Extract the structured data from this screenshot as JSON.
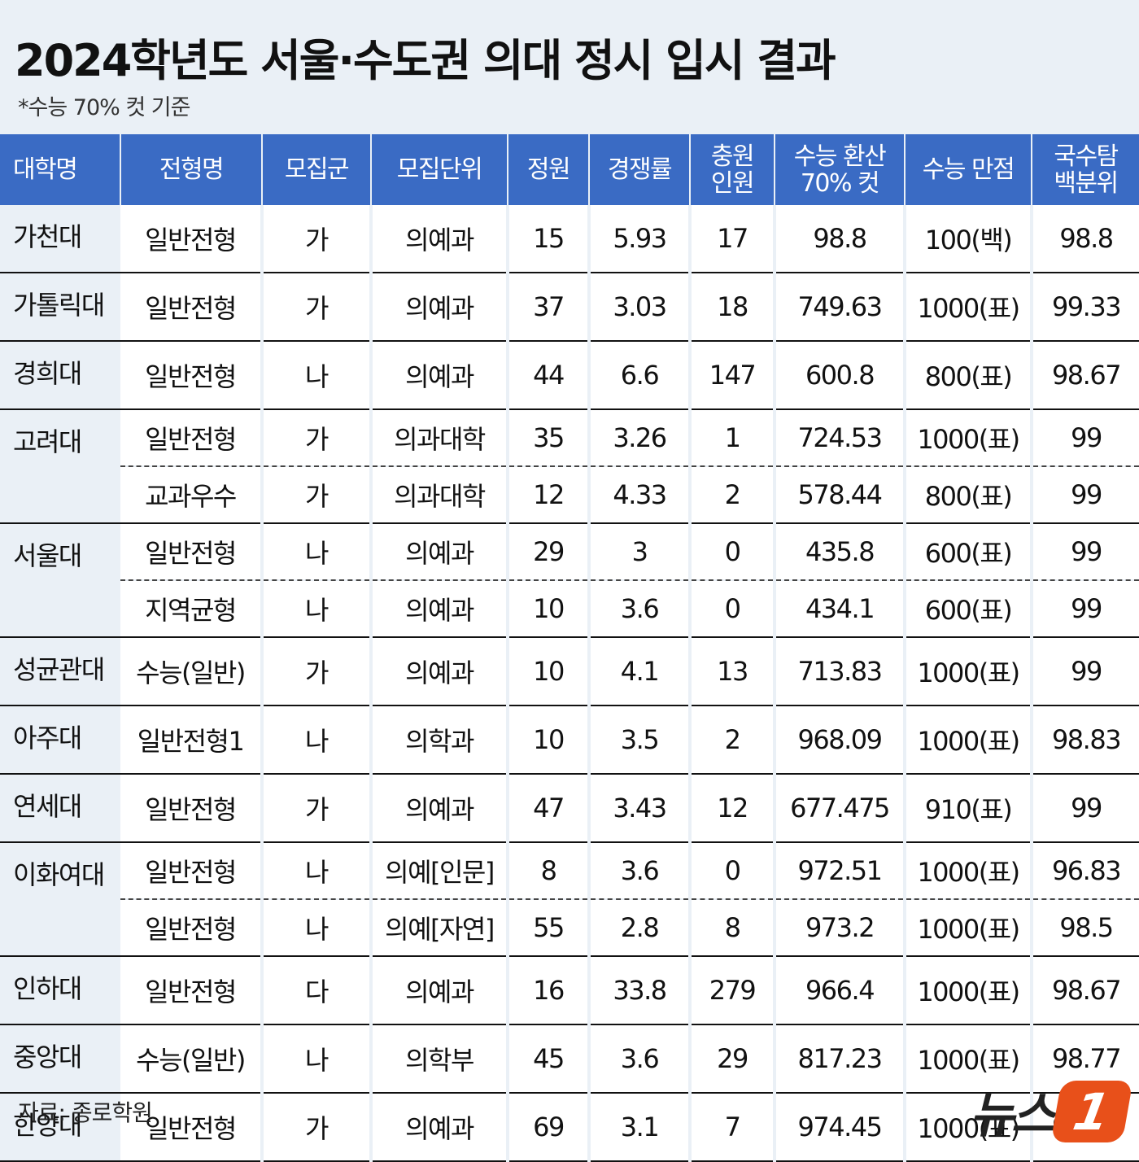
{
  "title": "2024학년도 서울·수도권 의대 정시 입시 결과",
  "subtitle": "*수능 70% 컷 기준",
  "headers": {
    "univ": "대학명",
    "type": "전형명",
    "group": "모집군",
    "unit": "모집단위",
    "quota": "정원",
    "ratio": "경쟁률",
    "extra": "충원\n인원",
    "cut": "수능 환산\n70% 컷",
    "perfect": "수능 만점",
    "pct": "국수탐\n백분위"
  },
  "rows": [
    {
      "univ": "가천대",
      "type": "일반전형",
      "group": "가",
      "unit": "의예과",
      "quota": "15",
      "ratio": "5.93",
      "extra": "17",
      "cut": "98.8",
      "perfect": "100(백)",
      "pct": "98.8"
    },
    {
      "univ": "가톨릭대",
      "type": "일반전형",
      "group": "가",
      "unit": "의예과",
      "quota": "37",
      "ratio": "3.03",
      "extra": "18",
      "cut": "749.63",
      "perfect": "1000(표)",
      "pct": "99.33"
    },
    {
      "univ": "경희대",
      "type": "일반전형",
      "group": "나",
      "unit": "의예과",
      "quota": "44",
      "ratio": "6.6",
      "extra": "147",
      "cut": "600.8",
      "perfect": "800(표)",
      "pct": "98.67"
    },
    {
      "univ": "고려대",
      "type": "일반전형",
      "group": "가",
      "unit": "의과대학",
      "quota": "35",
      "ratio": "3.26",
      "extra": "1",
      "cut": "724.53",
      "perfect": "1000(표)",
      "pct": "99"
    },
    {
      "univ": "",
      "type": "교과우수",
      "group": "가",
      "unit": "의과대학",
      "quota": "12",
      "ratio": "4.33",
      "extra": "2",
      "cut": "578.44",
      "perfect": "800(표)",
      "pct": "99"
    },
    {
      "univ": "서울대",
      "type": "일반전형",
      "group": "나",
      "unit": "의예과",
      "quota": "29",
      "ratio": "3",
      "extra": "0",
      "cut": "435.8",
      "perfect": "600(표)",
      "pct": "99"
    },
    {
      "univ": "",
      "type": "지역균형",
      "group": "나",
      "unit": "의예과",
      "quota": "10",
      "ratio": "3.6",
      "extra": "0",
      "cut": "434.1",
      "perfect": "600(표)",
      "pct": "99"
    },
    {
      "univ": "성균관대",
      "type": "수능(일반)",
      "group": "가",
      "unit": "의예과",
      "quota": "10",
      "ratio": "4.1",
      "extra": "13",
      "cut": "713.83",
      "perfect": "1000(표)",
      "pct": "99"
    },
    {
      "univ": "아주대",
      "type": "일반전형1",
      "group": "나",
      "unit": "의학과",
      "quota": "10",
      "ratio": "3.5",
      "extra": "2",
      "cut": "968.09",
      "perfect": "1000(표)",
      "pct": "98.83"
    },
    {
      "univ": "연세대",
      "type": "일반전형",
      "group": "가",
      "unit": "의예과",
      "quota": "47",
      "ratio": "3.43",
      "extra": "12",
      "cut": "677.475",
      "perfect": "910(표)",
      "pct": "99"
    },
    {
      "univ": "이화여대",
      "type": "일반전형",
      "group": "나",
      "unit": "의예[인문]",
      "quota": "8",
      "ratio": "3.6",
      "extra": "0",
      "cut": "972.51",
      "perfect": "1000(표)",
      "pct": "96.83"
    },
    {
      "univ": "",
      "type": "일반전형",
      "group": "나",
      "unit": "의예[자연]",
      "quota": "55",
      "ratio": "2.8",
      "extra": "8",
      "cut": "973.2",
      "perfect": "1000(표)",
      "pct": "98.5"
    },
    {
      "univ": "인하대",
      "type": "일반전형",
      "group": "다",
      "unit": "의예과",
      "quota": "16",
      "ratio": "33.8",
      "extra": "279",
      "cut": "966.4",
      "perfect": "1000(표)",
      "pct": "98.67"
    },
    {
      "univ": "중앙대",
      "type": "수능(일반)",
      "group": "나",
      "unit": "의학부",
      "quota": "45",
      "ratio": "3.6",
      "extra": "29",
      "cut": "817.23",
      "perfect": "1000(표)",
      "pct": "98.77"
    },
    {
      "univ": "한양대",
      "type": "일반전형",
      "group": "가",
      "unit": "의예과",
      "quota": "69",
      "ratio": "3.1",
      "extra": "7",
      "cut": "974.45",
      "perfect": "1000(표)",
      "pct": "98.67"
    }
  ],
  "source": "자료: 종로학원",
  "logo": {
    "text": "뉴스",
    "mark": "1"
  },
  "colors": {
    "header": "#3a6bc4",
    "background": "#eaf0f6",
    "logo": "#e8501a"
  }
}
